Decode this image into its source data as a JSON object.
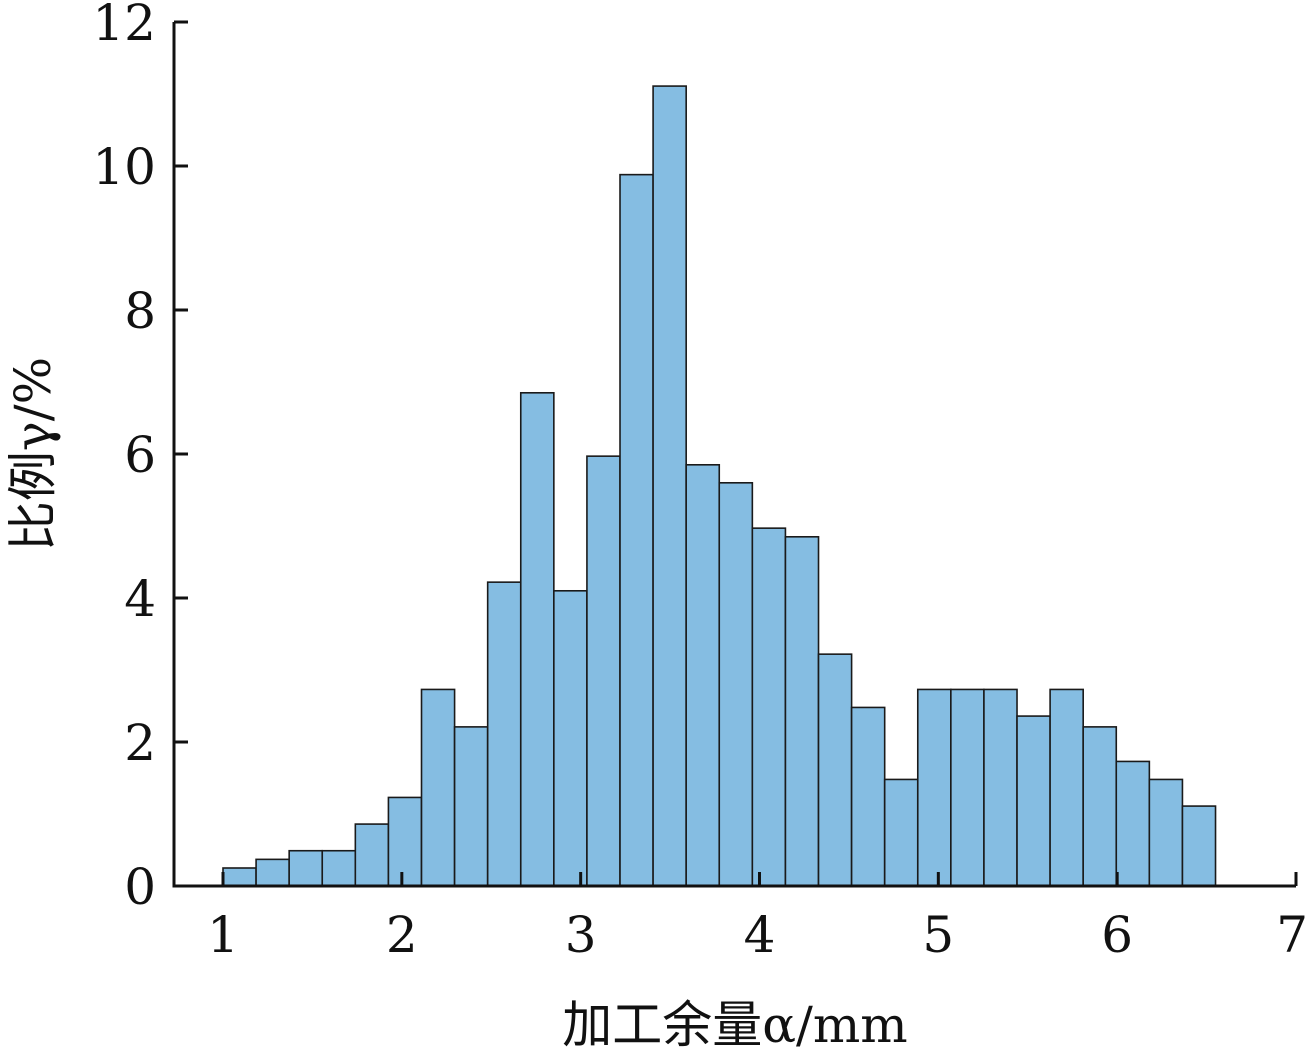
{
  "chart_data": {
    "type": "bar",
    "title": "",
    "xlabel": "加工余量α/mm",
    "ylabel": "比例γ/%",
    "xlim": [
      0.75,
      7
    ],
    "ylim": [
      0,
      12
    ],
    "xticks": [
      1,
      2,
      3,
      4,
      5,
      6,
      7
    ],
    "yticks": [
      0,
      2,
      4,
      6,
      8,
      10,
      12
    ],
    "bin_width": 0.185,
    "bin_start": 1.0,
    "values": [
      0.25,
      0.37,
      0.49,
      0.49,
      0.86,
      1.23,
      2.73,
      2.21,
      4.22,
      6.85,
      4.1,
      5.97,
      9.88,
      11.11,
      5.85,
      5.6,
      4.97,
      4.85,
      3.22,
      2.48,
      1.48,
      2.73,
      2.73,
      2.73,
      2.36,
      2.73,
      2.21,
      1.73,
      1.48,
      1.11
    ],
    "grid": false,
    "legend": "none",
    "bar_color": "#85bde2",
    "edge_color": "#1a1a1a"
  }
}
